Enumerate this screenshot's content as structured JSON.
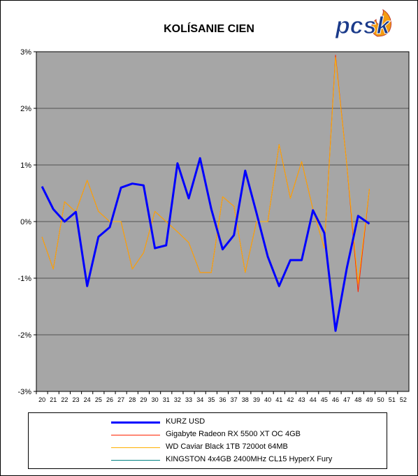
{
  "brand": {
    "logo_text": "pcsk",
    "accent": "#1a3a8a",
    "flame": "#f39c12"
  },
  "chart_data": {
    "type": "line",
    "title": "KOLÍSANIE CIEN",
    "xlabel": "",
    "ylabel": "",
    "x": [
      20,
      21,
      22,
      23,
      24,
      25,
      26,
      27,
      28,
      29,
      30,
      31,
      32,
      33,
      34,
      35,
      36,
      37,
      38,
      39,
      40,
      41,
      42,
      43,
      44,
      45,
      46,
      47,
      48,
      49,
      50,
      51,
      52
    ],
    "ylim": [
      -3,
      3
    ],
    "yticks": [
      3,
      2,
      1,
      0,
      -1,
      -2,
      -3
    ],
    "ytick_labels": [
      "3%",
      "2%",
      "1%",
      "0%",
      "-1%",
      "-2%",
      "-3%"
    ],
    "grid": true,
    "plot_background": "#a6a6a6",
    "legend_position": "bottom",
    "series": [
      {
        "name": "KURZ USD",
        "color": "#0000ff",
        "width": 3,
        "values": [
          0.62,
          0.22,
          0.0,
          0.17,
          -1.14,
          -0.27,
          -0.1,
          0.6,
          0.67,
          0.64,
          -0.47,
          -0.42,
          1.03,
          0.41,
          1.12,
          0.22,
          -0.49,
          -0.24,
          0.9,
          0.15,
          -0.62,
          -1.14,
          -0.68,
          -0.68,
          0.2,
          -0.2,
          -1.93,
          -0.82,
          0.1,
          -0.04,
          null,
          null,
          null
        ]
      },
      {
        "name": "Gigabyte Radeon RX 5500 XT OC 4GB",
        "color": "#ff2200",
        "width": 1,
        "values": [
          -0.27,
          -0.84,
          0.35,
          0.17,
          0.73,
          0.18,
          0.0,
          0.0,
          -0.84,
          -0.55,
          0.18,
          0.0,
          -0.18,
          -0.37,
          -0.9,
          -0.9,
          0.44,
          0.27,
          -0.9,
          0.0,
          0.0,
          1.36,
          0.41,
          1.06,
          0.22,
          -0.47,
          2.94,
          1.0,
          -1.24,
          0.58,
          null,
          null,
          null
        ]
      },
      {
        "name": "WD Caviar Black 1TB 7200ot 64MB",
        "color": "#ffb000",
        "width": 1,
        "values": [
          -0.27,
          -0.84,
          0.35,
          0.17,
          0.73,
          0.18,
          0.0,
          0.0,
          -0.84,
          -0.55,
          0.18,
          0.0,
          -0.18,
          -0.37,
          -0.9,
          -0.9,
          0.44,
          0.27,
          -0.9,
          0.0,
          0.0,
          1.36,
          0.41,
          1.06,
          0.22,
          -0.47,
          2.9,
          1.0,
          -1.1,
          0.58,
          null,
          null,
          null
        ]
      },
      {
        "name": "KINGSTON 4x4GB 2400MHz CL15 HyperX Fury",
        "color": "#008080",
        "width": 1,
        "values": [
          null,
          null,
          null,
          null,
          null,
          null,
          null,
          null,
          null,
          null,
          null,
          null,
          null,
          null,
          null,
          null,
          null,
          null,
          null,
          null,
          null,
          null,
          null,
          null,
          null,
          null,
          null,
          null,
          null,
          null,
          null,
          null,
          null
        ]
      }
    ]
  }
}
